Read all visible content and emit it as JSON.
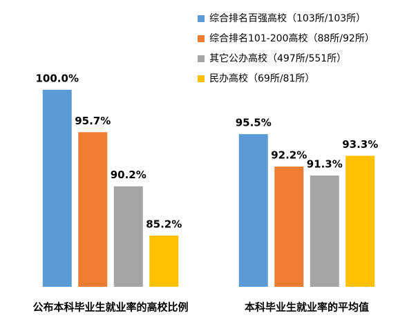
{
  "chart_data": {
    "type": "bar",
    "categories": [
      "公布本科毕业生就业率的高校比例",
      "本科毕业生就业率的平均值"
    ],
    "series": [
      {
        "name": "综合排名百强高校（103所/103所）",
        "color": "#5b9bd5",
        "values": [
          100.0,
          95.5
        ],
        "value_labels": [
          "100.0%",
          "95.5%"
        ]
      },
      {
        "name": "综合排名101-200高校（88所/92所）",
        "color": "#ed7d31",
        "values": [
          95.7,
          92.2
        ],
        "value_labels": [
          "95.7%",
          "92.2%"
        ]
      },
      {
        "name": "其它公办高校（497所/551所）",
        "color": "#a5a5a5",
        "values": [
          90.2,
          91.3
        ],
        "value_labels": [
          "90.2%",
          "91.3%"
        ]
      },
      {
        "name": "民办高校（69所/81所）",
        "color": "#ffc000",
        "values": [
          85.2,
          93.3
        ],
        "value_labels": [
          "85.2%",
          "93.3%"
        ]
      }
    ],
    "ylim": [
      80,
      100
    ],
    "legend": "top-right"
  }
}
